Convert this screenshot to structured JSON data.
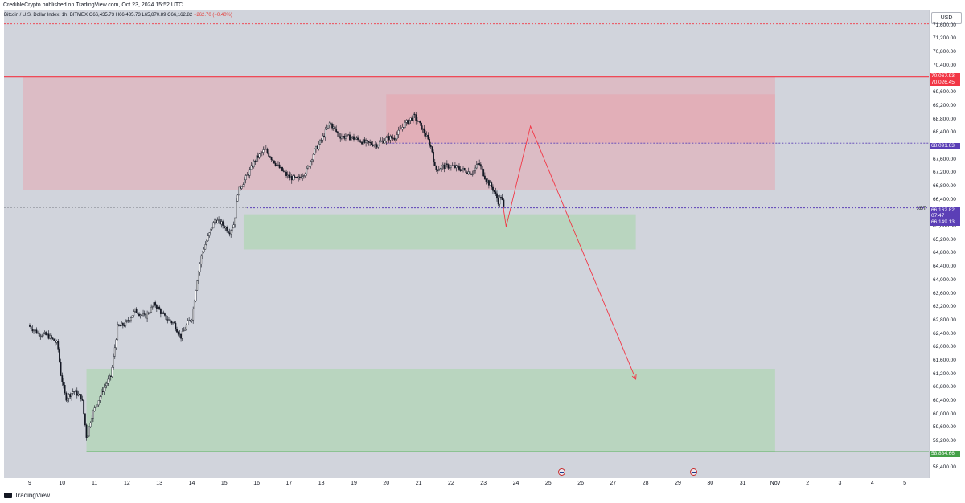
{
  "header": {
    "publisher_line": "CredibleCrypto published on TradingView.com, Oct 23, 2024 15:52 UTC"
  },
  "symbol": {
    "name": "Bitcoin / U.S. Dollar Index, 1h, BITMEX",
    "open": "O66,435.73",
    "high": "H66,435.73",
    "low": "L65,870.89",
    "close": "C66,162.82",
    "change": "−262.70 (−0.40%)"
  },
  "currency": "USD",
  "xbt_label": "XBT",
  "footer": {
    "brand": "TradingView"
  },
  "price_labels": {
    "upper_red_1": "70,067.93",
    "upper_red_2": "70,026.45",
    "purple_level": "68,091.63",
    "current_price": "66,162.82",
    "countdown": "07:47",
    "purple_low": "66,149.13",
    "support_green": "58,884.66"
  },
  "colors": {
    "background": "#d1d4dc",
    "red_zone": "#e8a0a8",
    "green_zone": "#a5d6a7",
    "red_line": "#f23645",
    "purple_line": "#5b3fb6",
    "green_line": "#43a047",
    "candle": "#131722",
    "projection": "#f23645"
  },
  "chart_data": {
    "type": "candlestick",
    "y_axis_ticks": [
      "71,600.00",
      "71,200.00",
      "70,800.00",
      "70,400.00",
      "69,600.00",
      "69,200.00",
      "68,800.00",
      "68,400.00",
      "67,600.00",
      "67,200.00",
      "66,800.00",
      "66,400.00",
      "65,600.00",
      "65,200.00",
      "64,800.00",
      "64,400.00",
      "64,000.00",
      "63,600.00",
      "63,200.00",
      "62,800.00",
      "62,400.00",
      "62,000.00",
      "61,600.00",
      "61,200.00",
      "60,800.00",
      "60,400.00",
      "60,000.00",
      "59,600.00",
      "59,200.00",
      "58,400.00"
    ],
    "x_axis_ticks": [
      "9",
      "10",
      "11",
      "12",
      "13",
      "14",
      "15",
      "16",
      "17",
      "18",
      "19",
      "20",
      "21",
      "22",
      "23",
      "24",
      "25",
      "26",
      "27",
      "28",
      "29",
      "30",
      "31",
      "Nov",
      "2",
      "3",
      "4",
      "5"
    ],
    "ylim": [
      58100,
      72050
    ],
    "price_path": [
      [
        9.0,
        62650
      ],
      [
        9.3,
        62420
      ],
      [
        9.6,
        62350
      ],
      [
        9.9,
        62100
      ],
      [
        10.0,
        61200
      ],
      [
        10.15,
        60480
      ],
      [
        10.4,
        60700
      ],
      [
        10.65,
        60500
      ],
      [
        10.8,
        59280
      ],
      [
        10.95,
        59950
      ],
      [
        11.3,
        60750
      ],
      [
        11.55,
        61150
      ],
      [
        11.75,
        62600
      ],
      [
        12.0,
        62700
      ],
      [
        12.3,
        63100
      ],
      [
        12.6,
        62900
      ],
      [
        12.9,
        63300
      ],
      [
        13.2,
        62900
      ],
      [
        13.5,
        62700
      ],
      [
        13.7,
        62300
      ],
      [
        13.9,
        62700
      ],
      [
        14.05,
        62900
      ],
      [
        14.2,
        64000
      ],
      [
        14.35,
        64800
      ],
      [
        14.55,
        65300
      ],
      [
        14.75,
        65800
      ],
      [
        14.95,
        65700
      ],
      [
        15.2,
        65450
      ],
      [
        15.35,
        65700
      ],
      [
        15.45,
        66600
      ],
      [
        15.55,
        66800
      ],
      [
        15.8,
        67200
      ],
      [
        16.0,
        67600
      ],
      [
        16.3,
        67900
      ],
      [
        16.7,
        67400
      ],
      [
        17.0,
        67100
      ],
      [
        17.3,
        67000
      ],
      [
        17.6,
        67300
      ],
      [
        17.8,
        67800
      ],
      [
        18.05,
        68200
      ],
      [
        18.3,
        68700
      ],
      [
        18.6,
        68300
      ],
      [
        19.0,
        68250
      ],
      [
        19.4,
        68100
      ],
      [
        19.75,
        68050
      ],
      [
        20.1,
        68250
      ],
      [
        20.3,
        68250
      ],
      [
        20.6,
        68650
      ],
      [
        20.9,
        68900
      ],
      [
        21.1,
        68600
      ],
      [
        21.3,
        68250
      ],
      [
        21.45,
        67900
      ],
      [
        21.55,
        67300
      ],
      [
        21.8,
        67400
      ],
      [
        22.1,
        67400
      ],
      [
        22.4,
        67300
      ],
      [
        22.7,
        67200
      ],
      [
        22.9,
        67500
      ],
      [
        23.1,
        67050
      ],
      [
        23.35,
        66700
      ],
      [
        23.5,
        66350
      ],
      [
        23.6,
        66550
      ],
      [
        23.65,
        66160
      ]
    ],
    "zones": [
      {
        "type": "supply",
        "color": "red",
        "x_from": 8.8,
        "x_to": 32.0,
        "y_from": 66700,
        "y_to": 70060
      },
      {
        "type": "supply",
        "color": "red",
        "x_from": 20.0,
        "x_to": 32.0,
        "y_from": 68100,
        "y_to": 69550
      },
      {
        "type": "demand",
        "color": "green",
        "x_from": 15.6,
        "x_to": 27.7,
        "y_from": 64920,
        "y_to": 65970
      },
      {
        "type": "demand",
        "color": "green",
        "x_from": 10.75,
        "x_to": 32.0,
        "y_from": 58884.66,
        "y_to": 61360
      }
    ],
    "horizontal_levels": [
      {
        "price": 71650,
        "color": "red",
        "style": "dotted"
      },
      {
        "price": 70067.93,
        "color": "red",
        "style": "solid"
      },
      {
        "price": 68091.63,
        "color": "purple",
        "style": "dotted"
      },
      {
        "price": 66162.82,
        "color": "purple",
        "style": "dotted"
      },
      {
        "price": 58884.66,
        "color": "green",
        "style": "solid"
      }
    ],
    "projection_path": [
      [
        23.6,
        66250
      ],
      [
        23.7,
        65600
      ],
      [
        24.45,
        68600
      ],
      [
        27.7,
        61050
      ]
    ]
  }
}
